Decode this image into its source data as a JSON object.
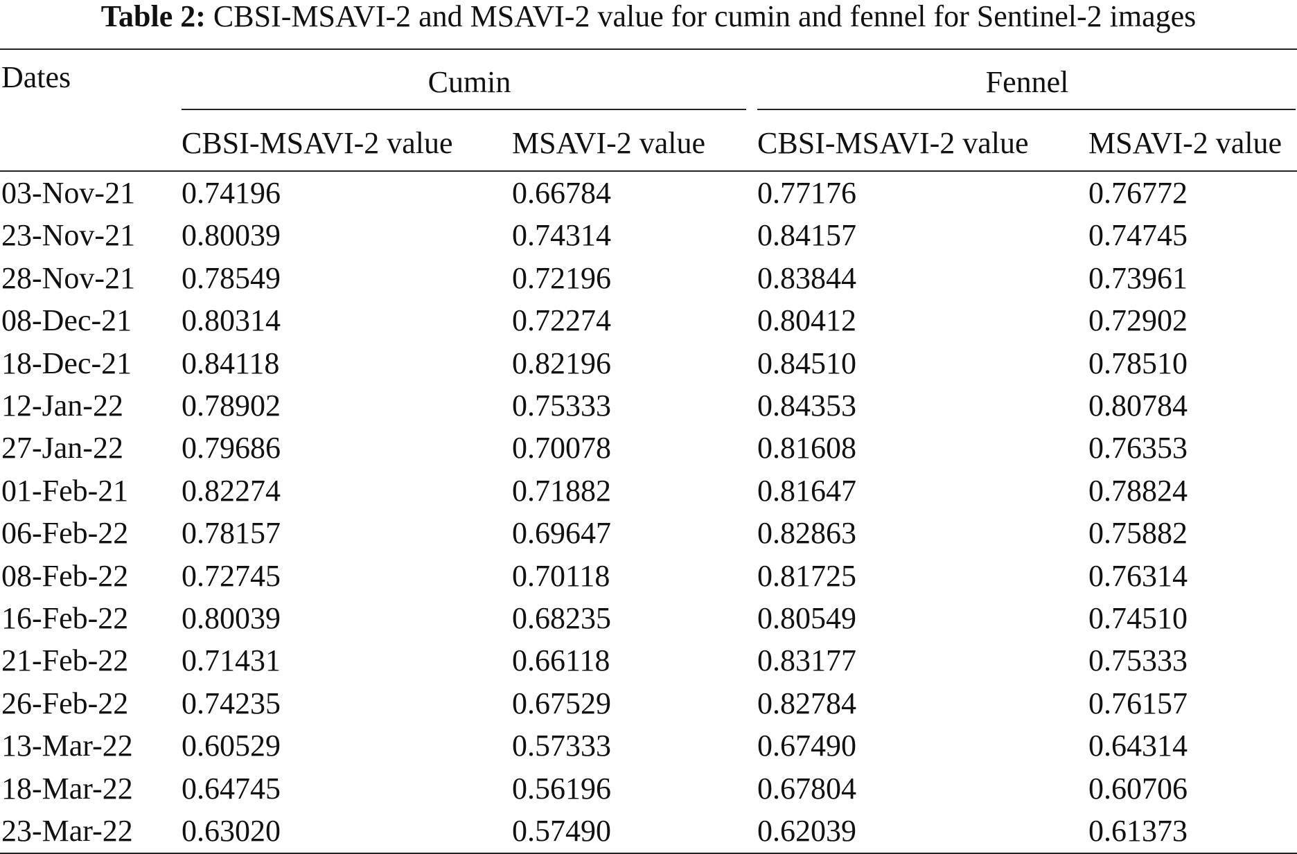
{
  "caption": {
    "label": "Table 2:",
    "text": "CBSI-MSAVI-2 and MSAVI-2 value for cumin and fennel for Sentinel-2 images"
  },
  "header": {
    "dates": "Dates",
    "groups": [
      "Cumin",
      "Fennel"
    ],
    "subcolumns": [
      "CBSI-MSAVI-2 value",
      "MSAVI-2 value",
      "CBSI-MSAVI-2 value",
      "MSAVI-2 value"
    ]
  },
  "chart_data": {
    "type": "table",
    "title": "CBSI-MSAVI-2 and MSAVI-2 value for cumin and fennel for Sentinel-2 images",
    "columns": [
      "Dates",
      "Cumin CBSI-MSAVI-2 value",
      "Cumin MSAVI-2 value",
      "Fennel CBSI-MSAVI-2 value",
      "Fennel MSAVI-2 value"
    ],
    "rows": [
      [
        "03-Nov-21",
        "0.74196",
        "0.66784",
        "0.77176",
        "0.76772"
      ],
      [
        "23-Nov-21",
        "0.80039",
        "0.74314",
        "0.84157",
        "0.74745"
      ],
      [
        "28-Nov-21",
        "0.78549",
        "0.72196",
        "0.83844",
        "0.73961"
      ],
      [
        "08-Dec-21",
        "0.80314",
        "0.72274",
        "0.80412",
        "0.72902"
      ],
      [
        "18-Dec-21",
        "0.84118",
        "0.82196",
        "0.84510",
        "0.78510"
      ],
      [
        "12-Jan-22",
        "0.78902",
        "0.75333",
        "0.84353",
        "0.80784"
      ],
      [
        "27-Jan-22",
        "0.79686",
        "0.70078",
        "0.81608",
        "0.76353"
      ],
      [
        "01-Feb-21",
        "0.82274",
        "0.71882",
        "0.81647",
        "0.78824"
      ],
      [
        "06-Feb-22",
        "0.78157",
        "0.69647",
        "0.82863",
        "0.75882"
      ],
      [
        "08-Feb-22",
        "0.72745",
        "0.70118",
        "0.81725",
        "0.76314"
      ],
      [
        "16-Feb-22",
        "0.80039",
        "0.68235",
        "0.80549",
        "0.74510"
      ],
      [
        "21-Feb-22",
        "0.71431",
        "0.66118",
        "0.83177",
        "0.75333"
      ],
      [
        "26-Feb-22",
        "0.74235",
        "0.67529",
        "0.82784",
        "0.76157"
      ],
      [
        "13-Mar-22",
        "0.60529",
        "0.57333",
        "0.67490",
        "0.64314"
      ],
      [
        "18-Mar-22",
        "0.64745",
        "0.56196",
        "0.67804",
        "0.60706"
      ],
      [
        "23-Mar-22",
        "0.63020",
        "0.57490",
        "0.62039",
        "0.61373"
      ]
    ]
  }
}
